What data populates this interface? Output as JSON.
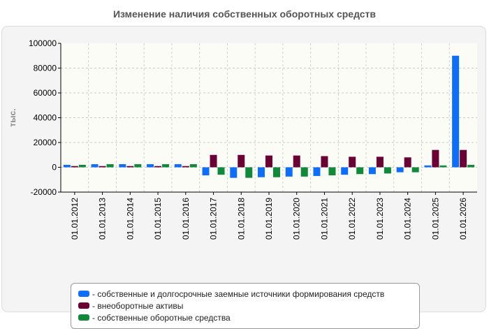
{
  "chart_data": {
    "type": "bar",
    "title": "Изменение наличия собственных оборотных средств",
    "xlabel": "",
    "ylabel": "тыс.",
    "ylim": [
      -20000,
      100000
    ],
    "yticks": [
      -20000,
      0,
      20000,
      40000,
      60000,
      80000,
      100000
    ],
    "grid": true,
    "legend_position": "bottom",
    "categories": [
      "01.01.2012",
      "01.01.2013",
      "01.01.2014",
      "01.01.2015",
      "01.01.2016",
      "01.01.2017",
      "01.01.2018",
      "01.01.2019",
      "01.01.2020",
      "01.01.2021",
      "01.01.2022",
      "01.01.2023",
      "01.01.2024",
      "01.01.2025",
      "01.01.2026"
    ],
    "series": [
      {
        "name": "собственные и долгосрочные заемные источники формирования средств",
        "color": "#0d6efd",
        "values": [
          2000,
          2500,
          2500,
          2500,
          2500,
          -6500,
          -8500,
          -8000,
          -7500,
          -7000,
          -6000,
          -5500,
          -4000,
          1500,
          90000
        ]
      },
      {
        "name": "внеоборотные активы",
        "color": "#6b0035",
        "values": [
          1000,
          1000,
          1000,
          1000,
          1000,
          10000,
          10000,
          9500,
          9500,
          9000,
          8500,
          8500,
          8000,
          14000,
          14000
        ]
      },
      {
        "name": "собственные оборотные средства",
        "color": "#0e8a3a",
        "values": [
          2000,
          2500,
          2500,
          2500,
          2500,
          -6000,
          -8500,
          -8000,
          -7500,
          -6500,
          -5500,
          -5000,
          -4000,
          1500,
          2000
        ]
      }
    ]
  }
}
